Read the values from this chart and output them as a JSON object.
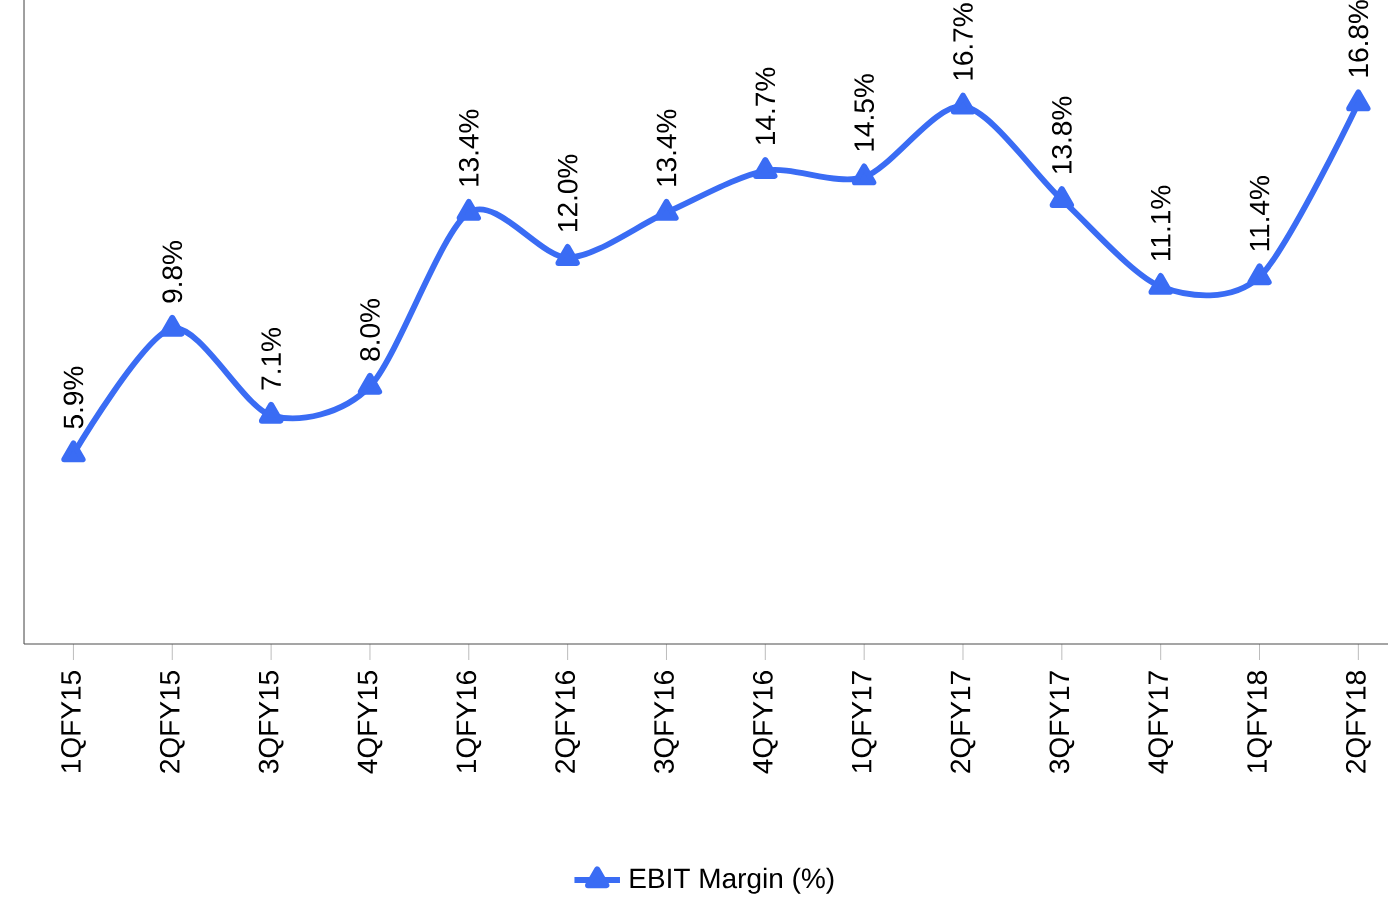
{
  "chart_data": {
    "type": "line",
    "categories": [
      "1QFY15",
      "2QFY15",
      "3QFY15",
      "4QFY15",
      "1QFY16",
      "2QFY16",
      "3QFY16",
      "4QFY16",
      "1QFY17",
      "2QFY17",
      "3QFY17",
      "4QFY17",
      "1QFY18",
      "2QFY18"
    ],
    "series": [
      {
        "name": "EBIT Margin (%)",
        "color": "#3a6cf4",
        "values": [
          5.9,
          9.8,
          7.1,
          8.0,
          13.4,
          12.0,
          13.4,
          14.7,
          14.5,
          16.7,
          13.8,
          11.1,
          11.4,
          16.8
        ],
        "value_labels": [
          "5.9%",
          "9.8%",
          "7.1%",
          "8.0%",
          "13.4%",
          "12.0%",
          "13.4%",
          "14.7%",
          "14.5%",
          "16.7%",
          "13.8%",
          "11.1%",
          "11.4%",
          "16.8%"
        ]
      }
    ],
    "ylim": [
      0,
      20
    ],
    "tick_labels": "x",
    "marker": "triangle",
    "line_style": "solid",
    "legend": "bottom"
  }
}
